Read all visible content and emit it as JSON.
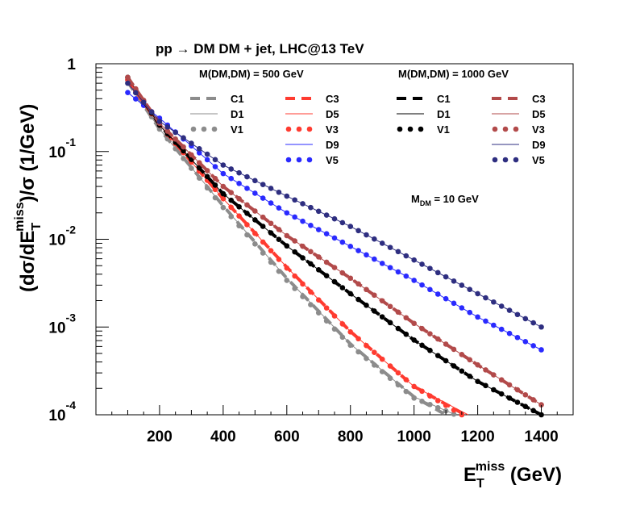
{
  "chart_data": {
    "type": "line",
    "title": "pp → DM DM + jet, LHC@13 TeV",
    "xlabel": {
      "main": "E",
      "sub": "T",
      "sup": "miss",
      "unit": " (GeV)"
    },
    "ylabel": {
      "prefix": "(dσ/dE",
      "sub": "T",
      "sup": "miss",
      "suffix": ")/σ (1/GeV)"
    },
    "annotation": {
      "main": "M",
      "sub": "DM",
      "rest": " = 10 GeV"
    },
    "legend_groups": [
      "M(DM,DM) = 500 GeV",
      "M(DM,DM) = 1000 GeV"
    ],
    "xlim": [
      0,
      1500
    ],
    "ylim": [
      0.0001,
      1
    ],
    "yscale": "log",
    "x_ticks": [
      200,
      400,
      600,
      800,
      1000,
      1200,
      1400
    ],
    "x_tick_labels": [
      "200",
      "400",
      "600",
      "800",
      "1000",
      "1200",
      "1400"
    ],
    "y_ticks": [
      {
        "value": 1,
        "base": "1",
        "exp": ""
      },
      {
        "value": 0.1,
        "base": "10",
        "exp": "-1"
      },
      {
        "value": 0.01,
        "base": "10",
        "exp": "-2"
      },
      {
        "value": 0.001,
        "base": "10",
        "exp": "-3"
      },
      {
        "value": 0.0001,
        "base": "10",
        "exp": "-4"
      }
    ],
    "series": [
      {
        "name": "C1",
        "color": "#8c8c8c",
        "style": "dashed",
        "x": [
          100,
          200,
          400,
          600,
          800,
          1000,
          1100
        ],
        "y": [
          0.62,
          0.18,
          0.024,
          0.0036,
          0.00064,
          0.00016,
          0.0001
        ]
      },
      {
        "name": "D1",
        "color": "#8c8c8c",
        "style": "thin",
        "x": [
          100,
          200,
          400,
          600,
          800,
          1000,
          1130
        ],
        "y": [
          0.62,
          0.18,
          0.024,
          0.0036,
          0.00064,
          0.00016,
          0.0001
        ]
      },
      {
        "name": "V1",
        "color": "#8c8c8c",
        "style": "dotted",
        "x": [
          100,
          200,
          400,
          600,
          800,
          1000,
          1130
        ],
        "y": [
          0.65,
          0.18,
          0.023,
          0.0034,
          0.00062,
          0.000155,
          0.0001
        ]
      },
      {
        "name": "C3",
        "color": "#ff3b30",
        "style": "dashed",
        "x": [
          100,
          200,
          400,
          600,
          800,
          1000,
          1160
        ],
        "y": [
          0.65,
          0.2,
          0.029,
          0.0048,
          0.00089,
          0.00021,
          0.0001
        ]
      },
      {
        "name": "D5",
        "color": "#ff3b30",
        "style": "thin",
        "x": [
          100,
          200,
          400,
          600,
          800,
          1000,
          1170
        ],
        "y": [
          0.65,
          0.2,
          0.029,
          0.0048,
          0.00089,
          0.00021,
          0.0001
        ]
      },
      {
        "name": "V3",
        "color": "#ff3b30",
        "style": "dotted",
        "x": [
          100,
          200,
          400,
          600,
          800,
          1000,
          1150
        ],
        "y": [
          0.66,
          0.2,
          0.029,
          0.0047,
          0.00088,
          0.00021,
          0.0001
        ]
      },
      {
        "name": "D9",
        "color": "#2a2aff",
        "style": "thin",
        "x": [
          100,
          200,
          400,
          600,
          800,
          1000,
          1200,
          1400
        ],
        "y": [
          0.47,
          0.24,
          0.056,
          0.02,
          0.0083,
          0.0034,
          0.0013,
          0.00055
        ]
      },
      {
        "name": "V5",
        "color": "#2a2aff",
        "style": "dotted",
        "x": [
          100,
          200,
          400,
          600,
          800,
          1000,
          1200,
          1400
        ],
        "y": [
          0.47,
          0.24,
          0.056,
          0.02,
          0.0083,
          0.0034,
          0.0013,
          0.00055
        ]
      },
      {
        "name": "C1",
        "color": "#000000",
        "style": "dashed",
        "x": [
          100,
          200,
          400,
          600,
          800,
          1000,
          1200,
          1400
        ],
        "y": [
          0.7,
          0.2,
          0.033,
          0.0084,
          0.0024,
          0.00071,
          0.00024,
          0.0001
        ]
      },
      {
        "name": "D1",
        "color": "#000000",
        "style": "thin",
        "x": [
          100,
          200,
          400,
          600,
          800,
          1000,
          1200,
          1400
        ],
        "y": [
          0.7,
          0.2,
          0.033,
          0.0084,
          0.0024,
          0.00071,
          0.00024,
          0.0001
        ]
      },
      {
        "name": "V1",
        "color": "#000000",
        "style": "dotted",
        "x": [
          100,
          200,
          400,
          600,
          800,
          1000,
          1200,
          1400
        ],
        "y": [
          0.7,
          0.2,
          0.033,
          0.0084,
          0.0024,
          0.00071,
          0.00024,
          0.0001
        ]
      },
      {
        "name": "C3",
        "color": "#b24a4a",
        "style": "dashed",
        "x": [
          100,
          200,
          400,
          600,
          800,
          1000,
          1200,
          1400
        ],
        "y": [
          0.7,
          0.21,
          0.04,
          0.011,
          0.0036,
          0.0011,
          0.00037,
          0.00013
        ]
      },
      {
        "name": "D5",
        "color": "#b24a4a",
        "style": "thin",
        "x": [
          100,
          200,
          400,
          600,
          800,
          1000,
          1200,
          1400
        ],
        "y": [
          0.7,
          0.21,
          0.04,
          0.011,
          0.0036,
          0.0011,
          0.00037,
          0.00013
        ]
      },
      {
        "name": "V3",
        "color": "#b24a4a",
        "style": "dotted",
        "x": [
          100,
          200,
          400,
          600,
          800,
          1000,
          1200,
          1400
        ],
        "y": [
          0.7,
          0.21,
          0.04,
          0.011,
          0.0036,
          0.0011,
          0.00037,
          0.00013
        ]
      },
      {
        "name": "D9",
        "color": "#2e2e80",
        "style": "thin",
        "x": [
          100,
          200,
          400,
          600,
          800,
          1000,
          1200,
          1400
        ],
        "y": [
          0.6,
          0.22,
          0.07,
          0.031,
          0.014,
          0.0058,
          0.0024,
          0.001
        ]
      },
      {
        "name": "V5",
        "color": "#2e2e80",
        "style": "dotted",
        "x": [
          100,
          200,
          400,
          600,
          800,
          1000,
          1200,
          1400
        ],
        "y": [
          0.6,
          0.22,
          0.07,
          0.031,
          0.014,
          0.0058,
          0.0024,
          0.001
        ]
      }
    ],
    "legend_columns": [
      [
        0,
        1,
        2
      ],
      [
        3,
        4,
        5,
        6,
        7
      ],
      [
        8,
        9,
        10
      ],
      [
        11,
        12,
        13,
        14,
        15
      ]
    ]
  }
}
